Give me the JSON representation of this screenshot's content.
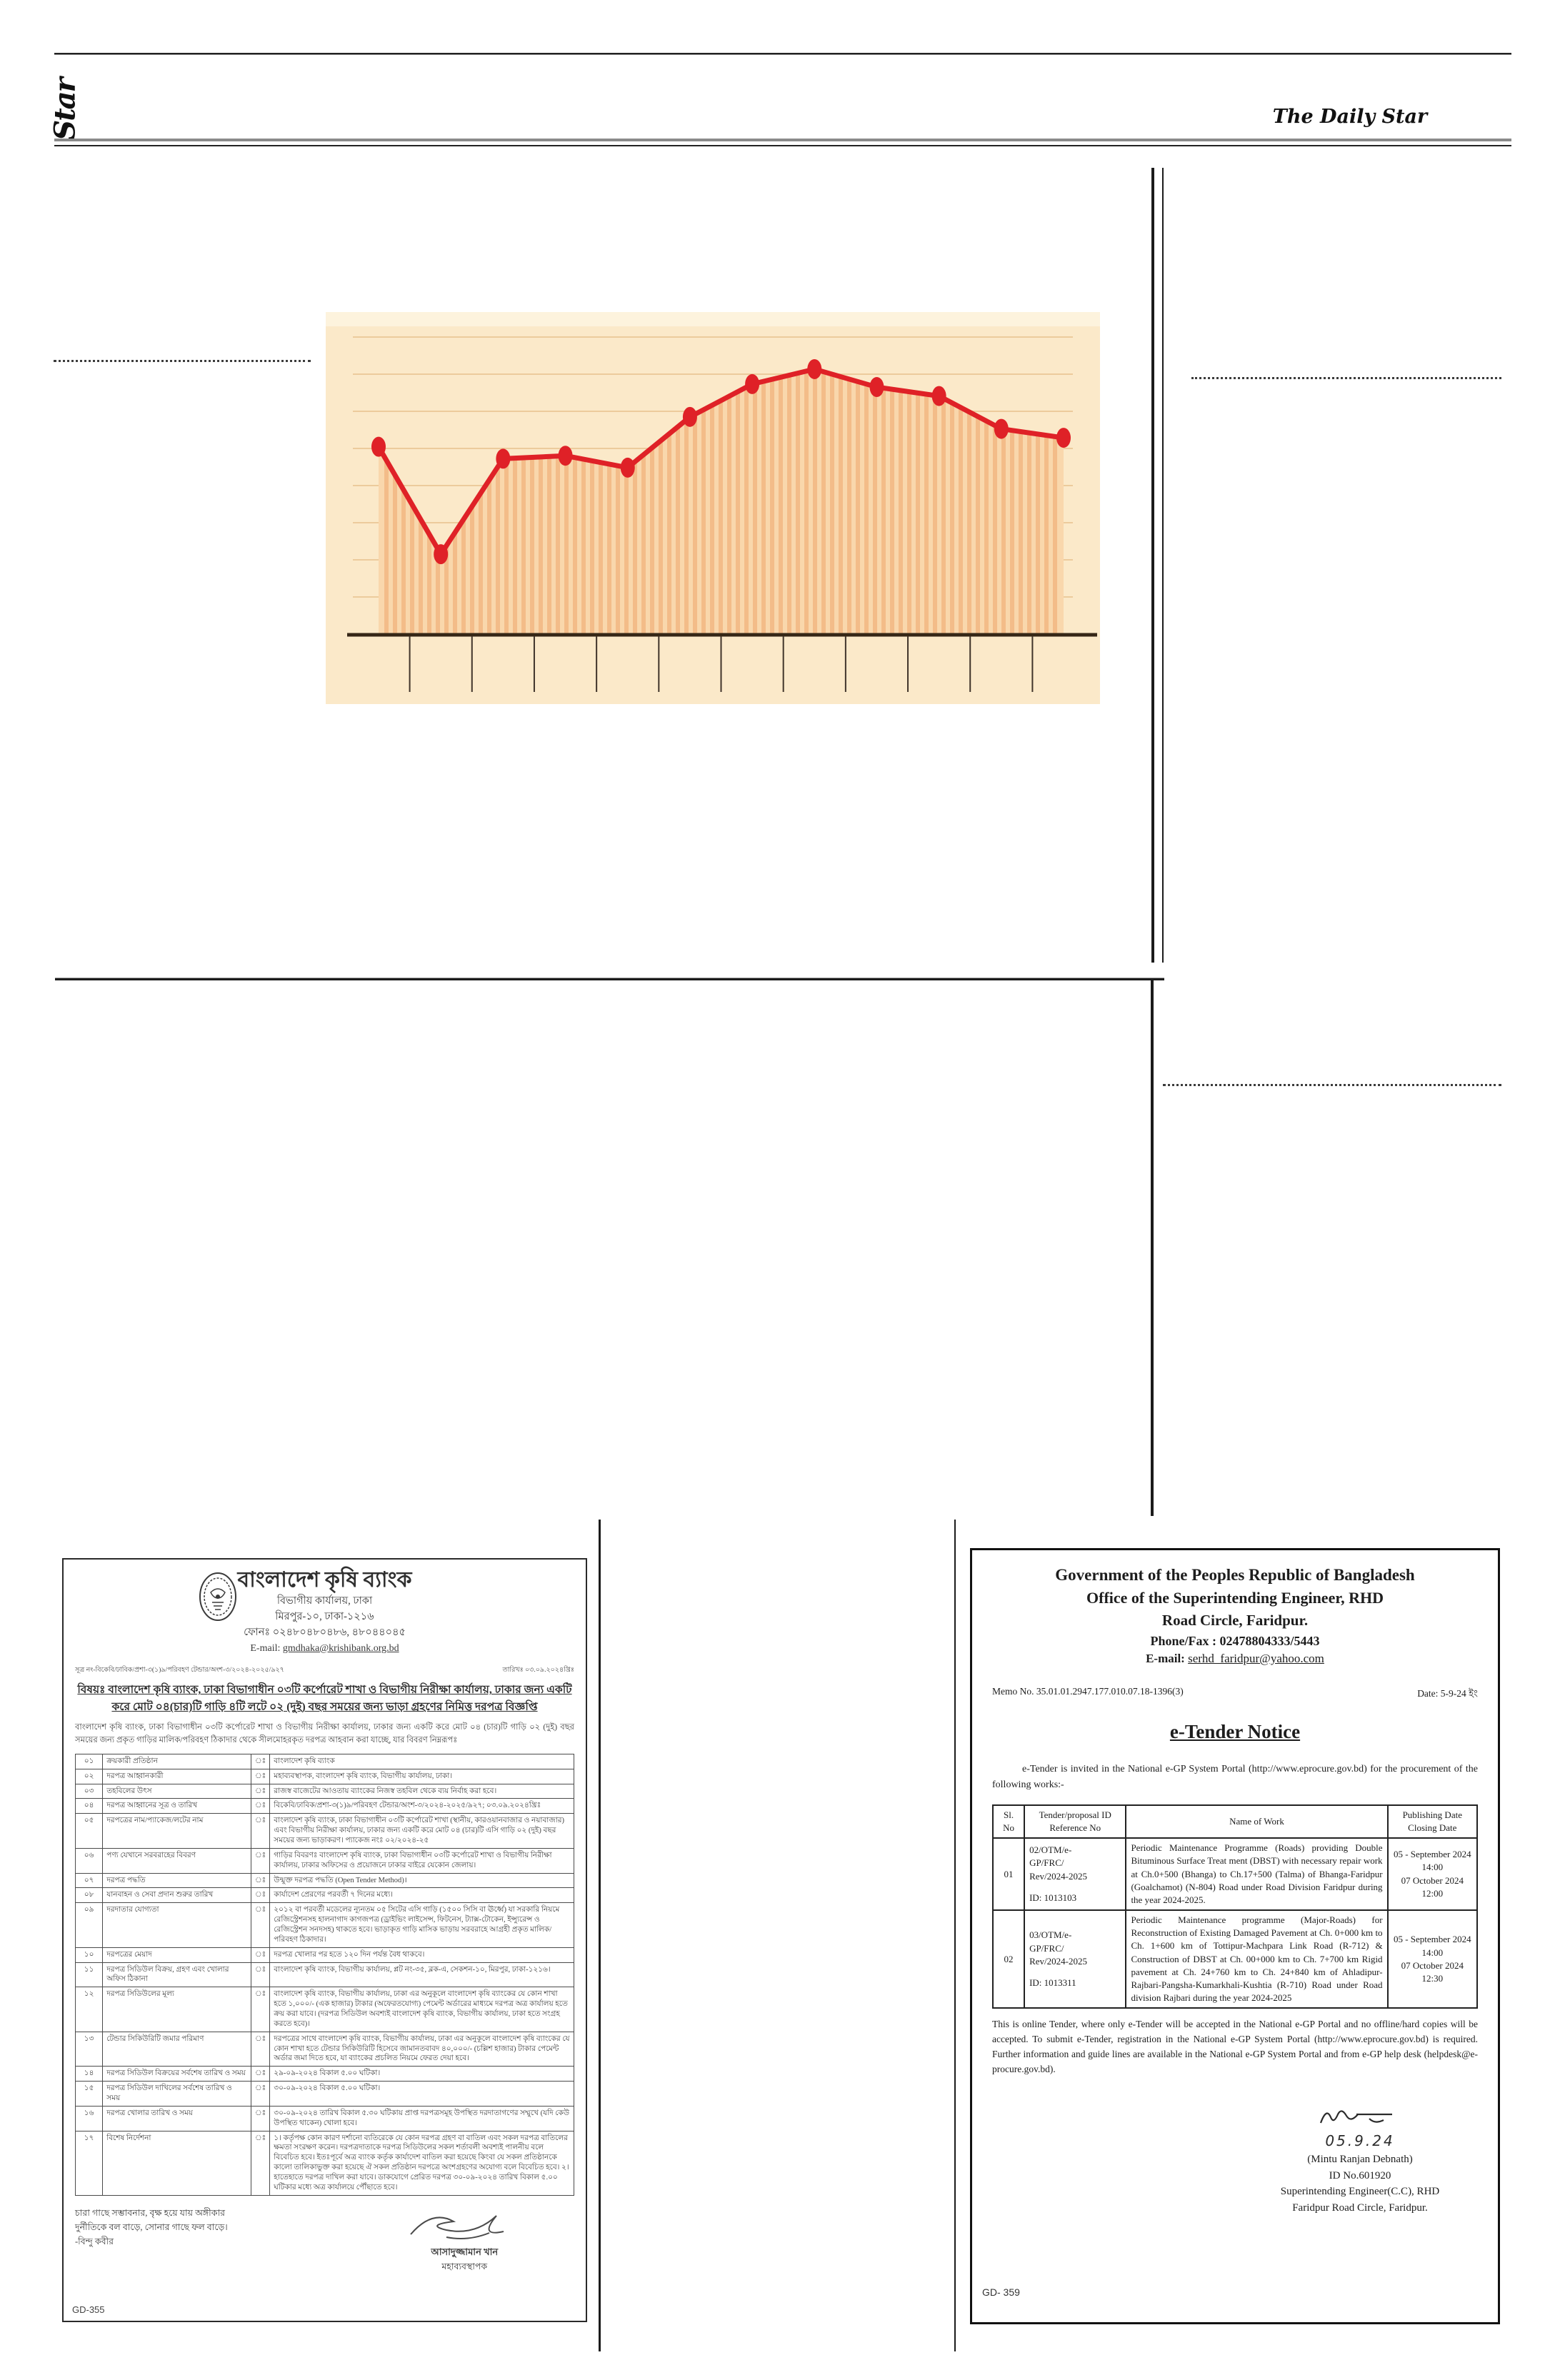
{
  "masthead": {
    "logo_vertical": "Star",
    "title": "The Daily Star"
  },
  "chart_data": {
    "type": "line",
    "title": "",
    "x_labels": [
      "",
      "",
      "",
      "",
      "",
      "",
      "",
      "",
      "",
      "",
      "",
      ""
    ],
    "values": [
      63,
      27,
      59,
      60,
      56,
      73,
      84,
      89,
      83,
      80,
      69,
      66
    ],
    "ylim": [
      0,
      100
    ],
    "grid": true,
    "gridline_count": 8,
    "x_tick_count": 11,
    "legend": "none",
    "area_fill": "vertical-stripes",
    "style": {
      "background": "#FBE9C9",
      "top_band": "#FDF3DD",
      "gridline": "#ECCB9C",
      "area_base": "#F9D7AC",
      "area_stripe": "#F3BC89",
      "line": "#DF2127",
      "axis": "#362716",
      "tick": "#40342a"
    },
    "note": "scanned newspaper chart; axis tick labels and values not legible in print"
  },
  "left_notice": {
    "header": {
      "org": "বাংলাদেশ কৃষি ব্যাংক",
      "office": "বিভাগীয় কার্যালয়, ঢাকা",
      "address": "মিরপুর-১০, ঢাকা-১২১৬",
      "phone": "ফোনঃ ০২৪৮০৪৮০৪৮৬, ৪৮০৪৪০৪৫",
      "email_label": "E-mail: ",
      "email": "gmdhaka@krishibank.org.bd"
    },
    "memo": {
      "ref": "সূত্র নং-বিকেবি/ঢাবিক/প্রশা-৩(১)৯/পরিবহণ টেন্ডার/অংশ-৩/২০২৪-২০২৫/৯২৭",
      "date": "তারিখঃ ০৩.০৯.২০২৪খ্রিঃ"
    },
    "subject": "বিষয়ঃ বাংলাদেশ কৃষি ব্যাংক, ঢাকা বিভাগাধীন ০৩টি কর্পোরেট শাখা ও বিভাগীয় নিরীক্ষা কার্যালয়, ঢাকার জন্য একটি করে মোট ০৪(চার)টি গাড়ি ৪টি লটে ০২ (দুই) বছর সময়ের জন্য ভাড়া গ্রহণের নিমিত্ত দরপত্র বিজ্ঞপ্তি",
    "intro": "বাংলাদেশ কৃষি ব্যাংক, ঢাকা বিভাগাধীন ০৩টি কর্পোরেট শাখা ও বিভাগীয় নিরীক্ষা কার্যালয়, ঢাকার জন্য একটি করে মোট ০৪ (চার)টি গাড়ি ০২ (দুই) বছর সময়ের জন্য প্রকৃত গাড়ির মালিক/পরিবহণ ঠিকাদার থেকে সীলমোহরকৃত দরপত্র আহবান করা যাচ্ছে, যার বিবরণ নিম্নরূপঃ",
    "table": {
      "colon": "ঃ",
      "rows": [
        {
          "sl": "০১",
          "label": "ক্রয়কারী প্রতিষ্ঠান",
          "value": "বাংলাদেশ কৃষি ব্যাংক"
        },
        {
          "sl": "০২",
          "label": "দরপত্র আহ্বানকারী",
          "value": "মহাব্যবস্থাপক, বাংলাদেশ কৃষি ব্যাংক, বিভাগীয় কার্যালয়, ঢাকা।"
        },
        {
          "sl": "০৩",
          "label": "তহবিলের উৎস",
          "value": "রাজস্ব বাজেটের আওতায় ব্যাংকের নিজস্ব তহবিল থেকে ব্যয় নির্বাহ করা হবে।"
        },
        {
          "sl": "০৪",
          "label": "দরপত্র আহ্বানের সূত্র ও তারিখ",
          "value": "বিকেবি/ঢাবিক/প্রশা-৩(১)৯/পরিবহণ টেন্ডার/অংশ-৩/২০২৪-২০২৫/৯২৭; ০৩.০৯.২০২৪খ্রিঃ"
        },
        {
          "sl": "০৫",
          "label": "দরপত্রের নাম/প্যাকেজ/লটের নাম",
          "value": "বাংলাদেশ কৃষি ব্যাংক, ঢাকা বিভাগাধীন ০৩টি কর্পোরেট শাখা (স্থানীয়, কারওয়ানবাজার ও নয়াবাজার) এবং বিভাগীয় নিরীক্ষা কার্যালয়, ঢাকার জন্য একটি করে মোট ০৪ (চার)টি এসি গাড়ি ০২ (দুই) বছর সময়ের জন্য ভাড়াকরণ। প্যাকেজ নংঃ ০২/২০২৪-২৫"
        },
        {
          "sl": "০৬",
          "label": "পণ্য যেখানে সরবরাহের বিবরণ",
          "value": "গাড়ির বিবরণঃ বাংলাদেশ কৃষি ব্যাংক, ঢাকা বিভাগাধীন ০৩টি কর্পোরেট শাখা ও বিভাগীয় নিরীক্ষা কার্যালয়, ঢাকার অফিসের ও প্রয়োজনে ঢাকার বাইরে যেকোন জেলায়।"
        },
        {
          "sl": "০৭",
          "label": "দরপত্র পদ্ধতি",
          "value": "উন্মুক্ত দরপত্র পদ্ধতি (Open Tender Method)।"
        },
        {
          "sl": "০৮",
          "label": "যানবাহন ও সেবা প্রদান শুরুর তারিখ",
          "value": "কার্যাদেশ প্রেরণের পরবর্তী ৭ দিনের মধ্যে।"
        },
        {
          "sl": "০৯",
          "label": "দরদাতার যোগ্যতা",
          "value": "২০১২ বা পরবর্তী মডেলের ন্যূনতম ০৫ সিটের এসি গাড়ি (১৫০০ সিসি বা ঊর্ধ্বে) যা সরকারি নিয়মে রেজিস্ট্রেশনসহ হালনাগাদ কাগজপত্র (ড্রাইভিং লাইসেন্স, ফিটনেস, ট্যাক্স-টোকেন, ইন্স্যুরেন্স ও রেজিস্ট্রেশন সনদসহ) থাকতে হবে। ভাড়াকৃত গাড়ি মাসিক ভাড়ায় সরবরাহে আগ্রহী প্রকৃত মালিক/পরিবহণ ঠিকাদার।"
        },
        {
          "sl": "১০",
          "label": "দরপত্রের মেয়াদ",
          "value": "দরপত্র খোলার পর হতে ১২০ দিন পর্যন্ত বৈধ থাকবে।"
        },
        {
          "sl": "১১",
          "label": "দরপত্র সিডিউল বিক্রয়, গ্রহণ এবং খোলার অফিস ঠিকানা",
          "value": "বাংলাদেশ কৃষি ব্যাংক, বিভাগীয় কার্যালয়, প্লট নং-৩৫, ব্লক-এ, সেকশন-১০, মিরপুর, ঢাকা-১২১৬।"
        },
        {
          "sl": "১২",
          "label": "দরপত্র সিডিউলের মূল্য",
          "value": "বাংলাদেশ কৃষি ব্যাংক, বিভাগীয় কার্যালয়, ঢাকা এর অনুকূলে বাংলাদেশ কৃষি ব্যাংকের যে কোন শাখা হতে ১,০০০/- (এক হাজার) টাকার (অফেরতযোগ্য) পেমেন্ট অর্ডারের মাধ্যমে দরপত্র অত্র কার্যালয় হতে ক্রয় করা যাবে। (দরপত্র সিডিউল অবশ্যই বাংলাদেশ কৃষি ব্যাংক, বিভাগীয় কার্যালয়, ঢাকা হতে সংগ্রহ করতে হবে)।"
        },
        {
          "sl": "১৩",
          "label": "টেন্ডার সিকিউরিটি জমার পরিমাণ",
          "value": "দরপত্রের সাথে বাংলাদেশ কৃষি ব্যাংক, বিভাগীয় কার্যালয়, ঢাকা এর অনুকূলে বাংলাদেশ কৃষি ব্যাংকের যে কোন শাখা হতে টেন্ডার সিকিউরিটি হিসেবে জামানতবাবদ ৪০,০০০/- (চল্লিশ হাজার) টাকার পেমেন্ট অর্ডার জমা দিতে হবে, যা ব্যাংকের প্রচলিত নিয়মে ফেরত দেয়া হবে।"
        },
        {
          "sl": "১৪",
          "label": "দরপত্র সিডিউল বিক্রয়ের সর্বশেষ তারিখ ও সময়",
          "value": "২৯-০৯-২০২৪ বিকাল ৫.০০ ঘটিকা।"
        },
        {
          "sl": "১৫",
          "label": "দরপত্র সিডিউল দাখিলের সর্বশেষ তারিখ ও সময়",
          "value": "৩০-০৯-২০২৪ বিকাল ৫.০০ ঘটিকা।"
        },
        {
          "sl": "১৬",
          "label": "দরপত্র খোলার তারিখ ও সময়",
          "value": "৩০-০৯-২০২৪ তারিখ বিকাল ৫.৩০ ঘটিকায় প্রাপ্ত দরপত্রসমূহ উপস্থিত দরদাতাগণের সম্মুখে (যদি কেউ উপস্থিত থাকেন) খোলা হবে।"
        },
        {
          "sl": "১৭",
          "label": "বিশেষ নির্দেশনা",
          "value": "১। কর্তৃপক্ষ কোন কারণ দর্শানো ব্যতিরেকে যে কোন দরপত্র গ্রহণ বা বাতিল এবং সকল দরপত্র বাতিলের ক্ষমতা সংরক্ষণ করেন। দরপত্রদাতাকে দরপত্র সিডিউলের সকল শর্তাবলী অবশ্যই পালনীয় বলে বিবেচিত হবে। ইতঃপূর্বে অত্র ব্যাংক কর্তৃক কার্যাদেশ বাতিল করা হয়েছে কিংবা যে সকল প্রতিষ্ঠানকে কালো তালিকাভুক্ত করা হয়েছে ঐ সকল প্রতিষ্ঠান দরপত্রে অংশগ্রহণের অযোগ্য বলে বিবেচিত হবে। ২। হাতেহাতে দরপত্র দাখিল করা যাবে। ডাকযোগে প্রেরিত দরপত্র ৩০-০৯-২০২৪ তারিখ বিকাল ৫.০০ ঘটিকার মধ্যে অত্র কার্যালয়ে পৌঁছাতে হবে।"
        }
      ]
    },
    "slogan": [
      "চারা গাছে সম্ভাবনার, বৃক্ষ হয়ে যায় অঙ্গীকার",
      "দুর্নীতিকে বল বাড়ে, সোনার গাছে ফল বাড়ে।",
      "-বিন্দু কবীর"
    ],
    "signature": {
      "name": "আসাদুজ্জামান খান",
      "title": "মহাব্যবস্থাপক"
    },
    "gd": "GD-355"
  },
  "right_notice": {
    "header": {
      "line1": "Government of the Peoples Republic of Bangladesh",
      "line2": "Office of the Superintending Engineer, RHD",
      "line3": "Road Circle, Faridpur.",
      "phone": "Phone/Fax : 02478804333/5443",
      "email_label": "E-mail: ",
      "email": "serhd_faridpur@yahoo.com"
    },
    "memo": {
      "ref": "Memo No. 35.01.01.2947.177.010.07.18-1396(3)",
      "date": "Date: 5-9-24 ইং"
    },
    "title": "e-Tender Notice",
    "intro": "e-Tender is invited in the National e-GP System Portal (http://www.eprocure.gov.bd) for the procurement of the following works:-",
    "table": {
      "headers": {
        "sl": [
          "Sl.",
          "No"
        ],
        "id": [
          "Tender/proposal ID",
          "Reference No"
        ],
        "work": [
          "Name of Work"
        ],
        "dates": [
          "Publishing Date",
          "Closing Date"
        ]
      },
      "rows": [
        {
          "sl": "01",
          "id_lines": [
            "02/OTM/e-",
            "GP/FRC/",
            "Rev/2024-2025",
            "",
            "ID: 1013103"
          ],
          "work": "Periodic Maintenance Programme (Roads) providing Double Bituminous Surface Treat ment (DBST) with necessary repair work at Ch.0+500 (Bhanga) to Ch.17+500 (Talma) of Bhanga-Faridpur (Goalchamot) (N-804) Road under Road Division Faridpur during the year 2024-2025.",
          "date_lines": [
            "05 - September 2024",
            "14:00",
            "07 October 2024",
            "12:00"
          ]
        },
        {
          "sl": "02",
          "id_lines": [
            "03/OTM/e-",
            "GP/FRC/",
            "Rev/2024-2025",
            "",
            "ID: 1013311"
          ],
          "work": "Periodic Maintenance programme (Major-Roads) for Reconstruction of Existing Damaged Pavement at Ch. 0+000 km to Ch. 1+600 km of Tottipur-Machpara Link Road (R-712) & Construction of DBST at Ch. 00+000 km to Ch. 7+700 km Rigid pavement at Ch. 24+760 km to Ch. 24+840 km of Ahladipur-Rajbari-Pangsha-Kumarkhali-Kushtia (R-710) Road under Road division Rajbari during the year 2024-2025",
          "date_lines": [
            "05 - September 2024",
            "14:00",
            "07 October 2024",
            "12:30"
          ]
        }
      ]
    },
    "footer_para": "This is online Tender, where only e-Tender will be accepted in the National e-GP Portal and no offline/hard copies will be accepted. To submit e-Tender, registration in the National e-GP System Portal (http://www.eprocure.gov.bd) is required. Further information and guide lines are available in the National e-GP System Portal and from e-GP help desk (helpdesk@e-procure.gov.bd).",
    "signature": {
      "hand_date": "05.9.24",
      "name": "(Mintu Ranjan Debnath)",
      "id": "ID No.601920",
      "title1": "Superintending Engineer(C.C), RHD",
      "title2": "Faridpur Road Circle, Faridpur."
    },
    "gd": "GD- 359"
  }
}
